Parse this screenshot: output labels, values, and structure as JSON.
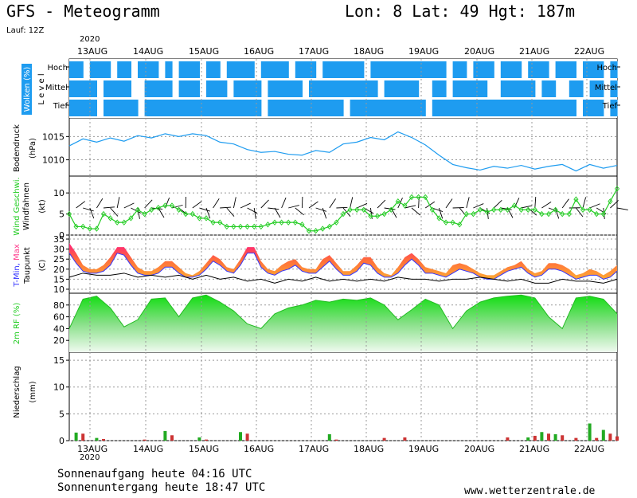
{
  "header": {
    "title": "GFS - Meteogramm",
    "coords": "Lon: 8 Lat: 49 Hgt: 187m",
    "run": "Lauf: 12Z"
  },
  "footer": {
    "sunrise": "Sonnenaufgang heute 04:16 UTC",
    "sunset": "Sonnenuntergang heute 18:47 UTC",
    "site": "www.wetterzentrale.de",
    "year": "2020"
  },
  "days": [
    "13AUG",
    "14AUG",
    "15AUG",
    "16AUG",
    "17AUG",
    "18AUG",
    "19AUG",
    "20AUG",
    "21AUG",
    "22AUG"
  ],
  "colors": {
    "cloud_blue": "#1E9CF0",
    "pressure": "#1E9CF0",
    "wind_green": "#22CC22",
    "rh_green": "#22CC22",
    "tmax": "#FF3C8C",
    "tmin": "#3333FF",
    "precip_green": "#22AA22",
    "precip_red": "#CC3333"
  },
  "chart_data": [
    {
      "type": "heatmap",
      "ylabel": "Wolken (%)",
      "ylabel2": "L e v e l",
      "levels": [
        "Hoch",
        "Mittel",
        "Tief"
      ],
      "x": [
        0,
        3,
        6,
        9,
        12,
        15,
        18,
        21,
        24,
        27,
        30,
        33,
        36,
        39,
        42,
        45,
        48,
        51,
        54,
        57,
        60,
        63,
        66,
        69,
        72,
        75,
        78,
        81,
        84,
        87,
        90,
        93,
        96,
        99,
        102,
        105,
        108,
        111,
        114,
        117,
        120,
        123,
        126,
        129,
        132,
        135,
        138,
        141,
        144,
        147,
        150,
        153,
        156,
        159,
        162,
        165,
        168,
        171,
        174,
        177,
        180,
        183,
        186,
        189,
        192,
        195,
        198,
        201,
        204,
        207,
        210,
        213,
        216,
        219,
        222,
        225,
        228,
        231,
        234,
        237
      ],
      "hoch": [
        1,
        1,
        0,
        1,
        1,
        1,
        0,
        1,
        1,
        0,
        1,
        1,
        1,
        0,
        1,
        0,
        1,
        1,
        1,
        0,
        1,
        1,
        0,
        1,
        1,
        1,
        1,
        0,
        1,
        1,
        1,
        1,
        0,
        1,
        1,
        1,
        0,
        1,
        1,
        1,
        1,
        1,
        1,
        0,
        1,
        1,
        1,
        1,
        1,
        1,
        1,
        1,
        1,
        1,
        1,
        0,
        1,
        1,
        0,
        1,
        1,
        1,
        0,
        1,
        1,
        1,
        0,
        1,
        1,
        1,
        0,
        1,
        1,
        1,
        0,
        1,
        1,
        1,
        0,
        1
      ],
      "mittel": [
        1,
        1,
        1,
        1,
        0,
        1,
        1,
        1,
        1,
        0,
        0,
        1,
        1,
        1,
        1,
        0,
        1,
        1,
        1,
        0,
        1,
        1,
        1,
        0,
        1,
        1,
        1,
        1,
        0,
        1,
        1,
        1,
        1,
        1,
        0,
        1,
        1,
        1,
        1,
        1,
        1,
        1,
        1,
        1,
        1,
        0,
        1,
        1,
        1,
        1,
        1,
        0,
        0,
        1,
        1,
        0,
        1,
        1,
        1,
        1,
        1,
        0,
        0,
        1,
        1,
        1,
        1,
        1,
        0,
        1,
        1,
        0,
        0,
        1,
        1,
        0,
        1,
        1,
        0,
        1
      ],
      "tief": [
        1,
        1,
        1,
        1,
        0,
        1,
        1,
        1,
        1,
        1,
        0,
        1,
        1,
        1,
        1,
        1,
        1,
        1,
        1,
        1,
        1,
        1,
        1,
        1,
        1,
        1,
        1,
        1,
        0,
        1,
        1,
        1,
        1,
        1,
        1,
        1,
        1,
        1,
        1,
        1,
        0,
        1,
        1,
        1,
        1,
        1,
        1,
        1,
        1,
        1,
        1,
        1,
        0,
        1,
        1,
        1,
        1,
        1,
        1,
        1,
        1,
        1,
        1,
        1,
        1,
        1,
        1,
        1,
        1,
        1,
        1,
        1,
        1,
        1,
        0,
        1,
        1,
        1,
        0,
        1
      ]
    },
    {
      "type": "line",
      "ylabel": "Bodendruck",
      "unit": "(hPa)",
      "ylim": [
        1006.5,
        1019
      ],
      "yticks": [
        1010,
        1015
      ],
      "series": [
        {
          "x": [
            0,
            6,
            12,
            18,
            24,
            30,
            36,
            42,
            48,
            54,
            60,
            66,
            72,
            78,
            84,
            90,
            96,
            102,
            108,
            114,
            120,
            126,
            132,
            138,
            144,
            150,
            156,
            162,
            168,
            174,
            180,
            186,
            192,
            198,
            204,
            210,
            216,
            222,
            228,
            234,
            240
          ],
          "values": [
            1013.0,
            1014.5,
            1013.8,
            1014.7,
            1014.0,
            1015.2,
            1014.7,
            1015.6,
            1015.0,
            1015.6,
            1015.2,
            1013.8,
            1013.4,
            1012.2,
            1011.6,
            1011.8,
            1011.2,
            1011.0,
            1012.0,
            1011.6,
            1013.4,
            1013.8,
            1014.8,
            1014.3,
            1016.0,
            1014.8,
            1013.2,
            1011.0,
            1009.0,
            1008.3,
            1007.8,
            1008.6,
            1008.2,
            1008.8,
            1008.0,
            1008.6,
            1009.0,
            1007.6,
            1009.0,
            1008.2,
            1008.8
          ]
        }
      ]
    },
    {
      "type": "line",
      "ylabel": "Wind Geschwi.",
      "ylabel2": "Windfahnen",
      "unit": "(kt)",
      "ylim": [
        0,
        14
      ],
      "yticks": [
        0,
        5,
        10
      ],
      "series": [
        {
          "name": "Wind Geschwi.",
          "x": [
            0,
            3,
            6,
            9,
            12,
            15,
            18,
            21,
            24,
            27,
            30,
            33,
            36,
            39,
            42,
            45,
            48,
            51,
            54,
            57,
            60,
            63,
            66,
            69,
            72,
            75,
            78,
            81,
            84,
            87,
            90,
            93,
            96,
            99,
            102,
            105,
            108,
            111,
            114,
            117,
            120,
            123,
            126,
            129,
            132,
            135,
            138,
            141,
            144,
            147,
            150,
            153,
            156,
            159,
            162,
            165,
            168,
            171,
            174,
            177,
            180,
            183,
            186,
            189,
            192,
            195,
            198,
            201,
            204,
            207,
            210,
            213,
            216,
            219,
            222,
            225,
            228,
            231,
            234,
            237,
            240
          ],
          "values": [
            5,
            2,
            2,
            1.5,
            1.5,
            5,
            4,
            3,
            3,
            4,
            6,
            5,
            6,
            6.5,
            7,
            7,
            6,
            5,
            5,
            4,
            4,
            3,
            3,
            2,
            2,
            2,
            2,
            2,
            2,
            2.5,
            3,
            3,
            3,
            3,
            2.5,
            1,
            1,
            1.5,
            2,
            3,
            5,
            6,
            6,
            6,
            4.5,
            4.5,
            5,
            6,
            8,
            7,
            9,
            9,
            9,
            6,
            4,
            3,
            3,
            2.5,
            5,
            5,
            6,
            5.5,
            6,
            6,
            6,
            7,
            6,
            6,
            6,
            5,
            5,
            6,
            5,
            5,
            8.5,
            6,
            6,
            5,
            5,
            8,
            11
          ]
        }
      ]
    },
    {
      "type": "area",
      "ylabel": "T-Min, Max",
      "ylabel2": "Taupunkt",
      "unit": "(C)",
      "ylim": [
        8,
        37
      ],
      "yticks": [
        10,
        15,
        20,
        25,
        30,
        35
      ],
      "series": [
        {
          "name": "Max",
          "x": [
            0,
            3,
            6,
            9,
            12,
            15,
            18,
            21,
            24,
            27,
            30,
            33,
            36,
            39,
            42,
            45,
            48,
            51,
            54,
            57,
            60,
            63,
            66,
            69,
            72,
            75,
            78,
            81,
            84,
            87,
            90,
            93,
            96,
            99,
            102,
            105,
            108,
            111,
            114,
            117,
            120,
            123,
            126,
            129,
            132,
            135,
            138,
            141,
            144,
            147,
            150,
            153,
            156,
            159,
            162,
            165,
            168,
            171,
            174,
            177,
            180,
            183,
            186,
            189,
            192,
            195,
            198,
            201,
            204,
            207,
            210,
            213,
            216,
            219,
            222,
            225,
            228,
            231,
            234,
            237,
            240
          ],
          "values": [
            33,
            28,
            22,
            20,
            20,
            22,
            26,
            31,
            31,
            26,
            21,
            19,
            19,
            21,
            24,
            24,
            21,
            18,
            17,
            19,
            23,
            27,
            25,
            21,
            20,
            25,
            31,
            31,
            24,
            20,
            19,
            22,
            24,
            25,
            21,
            20,
            20,
            25,
            27,
            23,
            19,
            19,
            22,
            26,
            26,
            21,
            18,
            17,
            21,
            26,
            28,
            25,
            21,
            20,
            19,
            18,
            22,
            23,
            22,
            20,
            18,
            17,
            17,
            19,
            21,
            22,
            24,
            20,
            18,
            19,
            23,
            23,
            22,
            20,
            17,
            18,
            20,
            19,
            17,
            19,
            22
          ]
        },
        {
          "name": "Min",
          "x": [
            0,
            3,
            6,
            9,
            12,
            15,
            18,
            21,
            24,
            27,
            30,
            33,
            36,
            39,
            42,
            45,
            48,
            51,
            54,
            57,
            60,
            63,
            66,
            69,
            72,
            75,
            78,
            81,
            84,
            87,
            90,
            93,
            96,
            99,
            102,
            105,
            108,
            111,
            114,
            117,
            120,
            123,
            126,
            129,
            132,
            135,
            138,
            141,
            144,
            147,
            150,
            153,
            156,
            159,
            162,
            165,
            168,
            171,
            174,
            177,
            180,
            183,
            186,
            189,
            192,
            195,
            198,
            201,
            204,
            207,
            210,
            213,
            216,
            219,
            222,
            225,
            228,
            231,
            234,
            237,
            240
          ],
          "values": [
            28,
            23,
            19,
            18,
            18,
            19,
            22,
            28,
            27,
            22,
            18,
            17,
            17,
            18,
            21,
            21,
            18,
            16,
            16,
            17,
            20,
            24,
            22,
            19,
            18,
            22,
            28,
            28,
            21,
            18,
            17,
            19,
            20,
            22,
            19,
            18,
            18,
            21,
            24,
            20,
            17,
            17,
            19,
            23,
            22,
            18,
            16,
            16,
            18,
            22,
            25,
            22,
            18,
            18,
            17,
            16,
            18,
            20,
            19,
            18,
            16,
            15,
            15,
            17,
            19,
            20,
            21,
            18,
            16,
            17,
            20,
            20,
            19,
            17,
            15,
            16,
            17,
            17,
            15,
            16,
            19
          ]
        },
        {
          "name": "Taupunkt",
          "x": [
            0,
            6,
            12,
            18,
            24,
            30,
            36,
            42,
            48,
            54,
            60,
            66,
            72,
            78,
            84,
            90,
            96,
            102,
            108,
            114,
            120,
            126,
            132,
            138,
            144,
            150,
            156,
            162,
            168,
            174,
            180,
            186,
            192,
            198,
            204,
            210,
            216,
            222,
            228,
            234,
            240
          ],
          "values": [
            16,
            18,
            17,
            17,
            18,
            16,
            17,
            16,
            17,
            15,
            17,
            15,
            16,
            14,
            15,
            13,
            15,
            14,
            16,
            14,
            15,
            14,
            15,
            14,
            16,
            15,
            15,
            14,
            15,
            15,
            16,
            15,
            14,
            15,
            13,
            13,
            15,
            14,
            14,
            13,
            15
          ]
        }
      ]
    },
    {
      "type": "area",
      "ylabel": "2m RF (%)",
      "ylim": [
        0,
        100
      ],
      "yticks": [
        20,
        40,
        60,
        80
      ],
      "series": [
        {
          "x": [
            0,
            6,
            12,
            18,
            24,
            30,
            36,
            42,
            48,
            54,
            60,
            66,
            72,
            78,
            84,
            90,
            96,
            102,
            108,
            114,
            120,
            126,
            132,
            138,
            144,
            150,
            156,
            162,
            168,
            174,
            180,
            186,
            192,
            198,
            204,
            210,
            216,
            222,
            228,
            234,
            240
          ],
          "values": [
            40,
            90,
            95,
            75,
            43,
            55,
            90,
            92,
            60,
            92,
            97,
            85,
            70,
            48,
            40,
            65,
            75,
            80,
            88,
            85,
            90,
            88,
            92,
            80,
            55,
            72,
            90,
            80,
            40,
            70,
            85,
            92,
            95,
            97,
            92,
            60,
            40,
            92,
            95,
            90,
            65
          ]
        }
      ]
    },
    {
      "type": "bar",
      "ylabel": "Niederschlag",
      "unit": "(mm)",
      "ylim": [
        0,
        16.5
      ],
      "yticks": [
        0,
        5,
        10,
        15
      ],
      "series": [
        {
          "name": "precip_green",
          "x": [
            3,
            12,
            42,
            57,
            75,
            114,
            201,
            207,
            213,
            228,
            234
          ],
          "values": [
            1.5,
            0.5,
            1.8,
            0.6,
            1.6,
            1.2,
            0.6,
            1.6,
            1.2,
            3.2,
            2.0
          ]
        },
        {
          "name": "precip_red",
          "x": [
            6,
            15,
            33,
            45,
            60,
            78,
            117,
            138,
            147,
            192,
            204,
            210,
            216,
            222,
            231,
            237,
            240
          ],
          "values": [
            1.3,
            0.3,
            0.2,
            1.0,
            0.2,
            1.3,
            0.2,
            0.5,
            0.6,
            0.6,
            0.9,
            1.3,
            1.0,
            0.5,
            0.5,
            1.3,
            0.8
          ]
        }
      ]
    }
  ]
}
